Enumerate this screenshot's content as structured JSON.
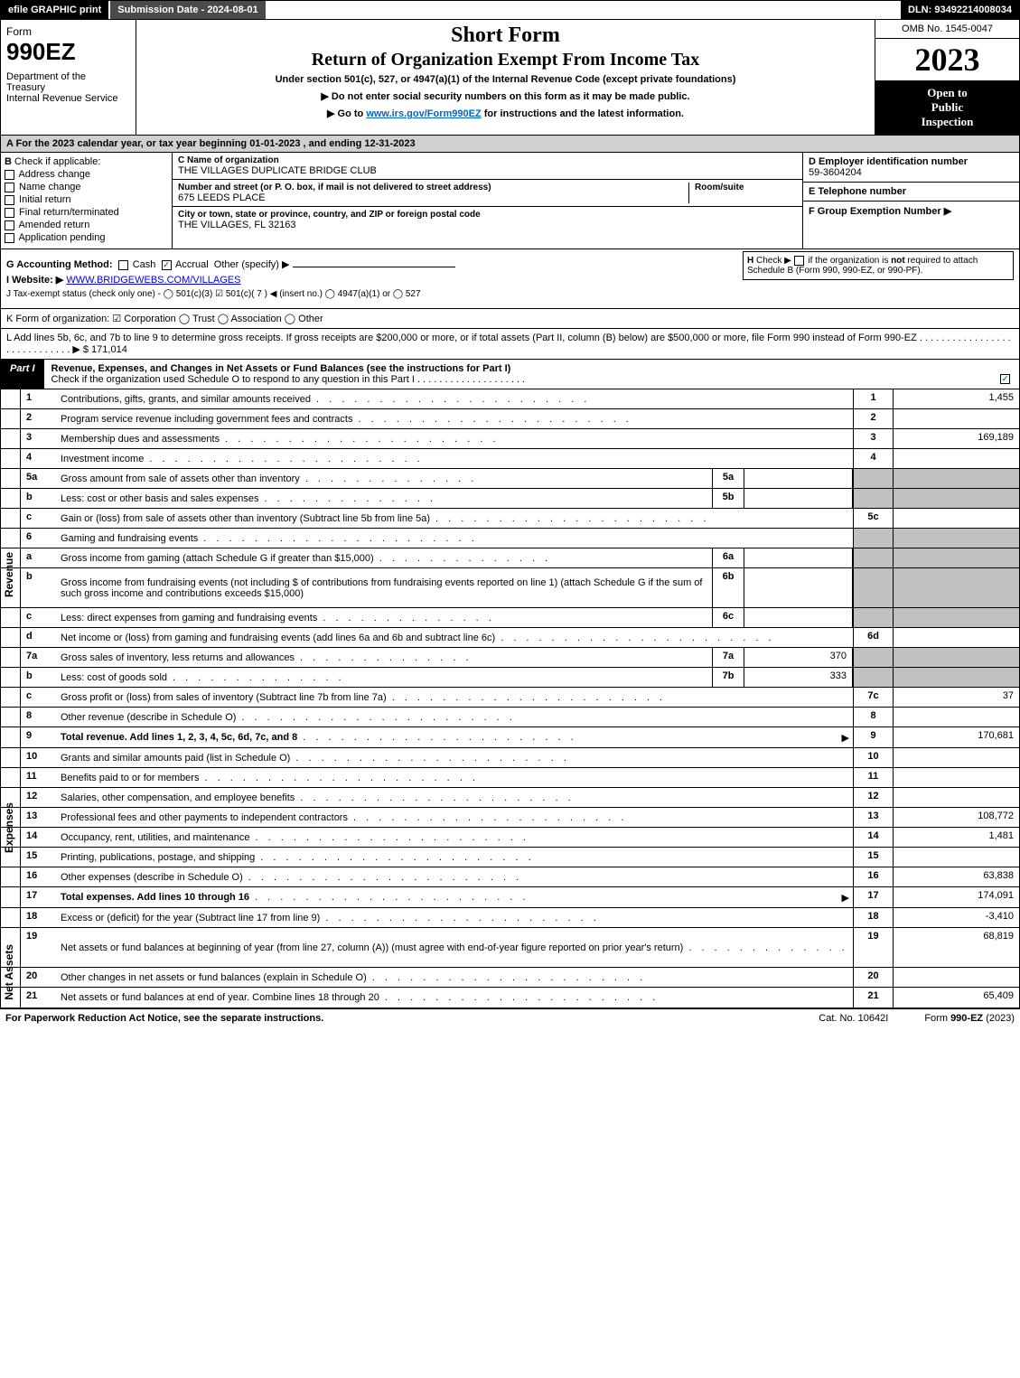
{
  "topbar": {
    "efile": "efile GRAPHIC print",
    "submission": "Submission Date - 2024-08-01",
    "dln": "DLN: 93492214008034"
  },
  "header": {
    "form_word": "Form",
    "form_num": "990EZ",
    "dept": "Department of the Treasury\nInternal Revenue Service",
    "short": "Short Form",
    "return": "Return of Organization Exempt From Income Tax",
    "sub": "Under section 501(c), 527, or 4947(a)(1) of the Internal Revenue Code (except private foundations)",
    "sub2a": "▶ Do not enter social security numbers on this form as it may be made public.",
    "sub2b": "▶ Go to ",
    "sub2b_link": "www.irs.gov/Form990EZ",
    "sub2b_after": " for instructions and the latest information.",
    "omb": "OMB No. 1545-0047",
    "year": "2023",
    "open": "Open to Public Inspection"
  },
  "line_a": "A  For the 2023 calendar year, or tax year beginning 01-01-2023  , and ending 12-31-2023",
  "col_b": {
    "hdr": "B",
    "hdr2": "Check if applicable:",
    "items": [
      "Address change",
      "Name change",
      "Initial return",
      "Final return/terminated",
      "Amended return",
      "Application pending"
    ]
  },
  "col_c": {
    "name_lbl": "C Name of organization",
    "name_val": "THE VILLAGES DUPLICATE BRIDGE CLUB",
    "street_lbl": "Number and street (or P. O. box, if mail is not delivered to street address)",
    "room_lbl": "Room/suite",
    "street_val": "675 LEEDS PLACE",
    "city_lbl": "City or town, state or province, country, and ZIP or foreign postal code",
    "city_val": "THE VILLAGES, FL  32163"
  },
  "col_d": {
    "ein_lbl": "D Employer identification number",
    "ein_val": "59-3604204",
    "tel_lbl": "E Telephone number",
    "tel_val": "",
    "grp_lbl": "F Group Exemption Number  ▶",
    "grp_val": ""
  },
  "section_gh": {
    "g": "G Accounting Method:",
    "g_cash": "Cash",
    "g_accr": "Accrual",
    "g_other": "Other (specify) ▶",
    "h": "H  Check ▶  ◯  if the organization is not required to attach Schedule B (Form 990, 990-EZ, or 990-PF).",
    "i": "I Website: ▶",
    "i_val": "WWW.BRIDGEWEBS.COM/VILLAGES",
    "j": "J Tax-exempt status (check only one) -  ◯ 501(c)(3)  ☑ 501(c)( 7 ) ◀ (insert no.)  ◯ 4947(a)(1) or  ◯ 527"
  },
  "section_k": "K Form of organization:  ☑ Corporation  ◯ Trust  ◯ Association  ◯ Other",
  "section_l": {
    "text": "L Add lines 5b, 6c, and 7b to line 9 to determine gross receipts. If gross receipts are $200,000 or more, or if total assets (Part II, column (B) below) are $500,000 or more, file Form 990 instead of Form 990-EZ . . . . . . . . . . . . . . . . . . . . . . . . . . . . .  ▶ $ ",
    "val": "171,014"
  },
  "part1": {
    "tab": "Part I",
    "title": "Revenue, Expenses, and Changes in Net Assets or Fund Balances (see the instructions for Part I)",
    "check": "Check if the organization used Schedule O to respond to any question in this Part I . . . . . . . . . . . . . . . . . . . .",
    "checked": true
  },
  "revenue_rows": [
    {
      "n": "1",
      "desc": "Contributions, gifts, grants, and similar amounts received",
      "ref": "1",
      "val": "1,455"
    },
    {
      "n": "2",
      "desc": "Program service revenue including government fees and contracts",
      "ref": "2",
      "val": ""
    },
    {
      "n": "3",
      "desc": "Membership dues and assessments",
      "ref": "3",
      "val": "169,189"
    },
    {
      "n": "4",
      "desc": "Investment income",
      "ref": "4",
      "val": ""
    },
    {
      "n": "5a",
      "desc": "Gross amount from sale of assets other than inventory",
      "mini_n": "5a",
      "mini_v": "",
      "ref": "",
      "val": "",
      "shade": true
    },
    {
      "n": "b",
      "desc": "Less: cost or other basis and sales expenses",
      "mini_n": "5b",
      "mini_v": "",
      "ref": "",
      "val": "",
      "shade": true
    },
    {
      "n": "c",
      "desc": "Gain or (loss) from sale of assets other than inventory (Subtract line 5b from line 5a)",
      "ref": "5c",
      "val": ""
    },
    {
      "n": "6",
      "desc": "Gaming and fundraising events",
      "ref": "",
      "val": "",
      "shade": true
    },
    {
      "n": "a",
      "desc": "Gross income from gaming (attach Schedule G if greater than $15,000)",
      "mini_n": "6a",
      "mini_v": "",
      "ref": "",
      "val": "",
      "shade": true
    },
    {
      "n": "b",
      "desc": "Gross income from fundraising events (not including $                    of contributions from fundraising events reported on line 1) (attach Schedule G if the sum of such gross income and contributions exceeds $15,000)",
      "mini_n": "6b",
      "mini_v": "",
      "ref": "",
      "val": "",
      "shade": true,
      "tall": true
    },
    {
      "n": "c",
      "desc": "Less: direct expenses from gaming and fundraising events",
      "mini_n": "6c",
      "mini_v": "",
      "ref": "",
      "val": "",
      "shade": true
    },
    {
      "n": "d",
      "desc": "Net income or (loss) from gaming and fundraising events (add lines 6a and 6b and subtract line 6c)",
      "ref": "6d",
      "val": ""
    },
    {
      "n": "7a",
      "desc": "Gross sales of inventory, less returns and allowances",
      "mini_n": "7a",
      "mini_v": "370",
      "ref": "",
      "val": "",
      "shade": true
    },
    {
      "n": "b",
      "desc": "Less: cost of goods sold",
      "mini_n": "7b",
      "mini_v": "333",
      "ref": "",
      "val": "",
      "shade": true
    },
    {
      "n": "c",
      "desc": "Gross profit or (loss) from sales of inventory (Subtract line 7b from line 7a)",
      "ref": "7c",
      "val": "37"
    },
    {
      "n": "8",
      "desc": "Other revenue (describe in Schedule O)",
      "ref": "8",
      "val": ""
    },
    {
      "n": "9",
      "desc": "Total revenue. Add lines 1, 2, 3, 4, 5c, 6d, 7c, and 8",
      "ref": "9",
      "val": "170,681",
      "bold": true,
      "arrow": true
    }
  ],
  "expense_rows": [
    {
      "n": "10",
      "desc": "Grants and similar amounts paid (list in Schedule O)",
      "ref": "10",
      "val": ""
    },
    {
      "n": "11",
      "desc": "Benefits paid to or for members",
      "ref": "11",
      "val": ""
    },
    {
      "n": "12",
      "desc": "Salaries, other compensation, and employee benefits",
      "ref": "12",
      "val": ""
    },
    {
      "n": "13",
      "desc": "Professional fees and other payments to independent contractors",
      "ref": "13",
      "val": "108,772"
    },
    {
      "n": "14",
      "desc": "Occupancy, rent, utilities, and maintenance",
      "ref": "14",
      "val": "1,481"
    },
    {
      "n": "15",
      "desc": "Printing, publications, postage, and shipping",
      "ref": "15",
      "val": ""
    },
    {
      "n": "16",
      "desc": "Other expenses (describe in Schedule O)",
      "ref": "16",
      "val": "63,838"
    },
    {
      "n": "17",
      "desc": "Total expenses. Add lines 10 through 16",
      "ref": "17",
      "val": "174,091",
      "bold": true,
      "arrow": true
    }
  ],
  "netassets_rows": [
    {
      "n": "18",
      "desc": "Excess or (deficit) for the year (Subtract line 17 from line 9)",
      "ref": "18",
      "val": "-3,410"
    },
    {
      "n": "19",
      "desc": "Net assets or fund balances at beginning of year (from line 27, column (A)) (must agree with end-of-year figure reported on prior year's return)",
      "ref": "19",
      "val": "68,819",
      "tall": true
    },
    {
      "n": "20",
      "desc": "Other changes in net assets or fund balances (explain in Schedule O)",
      "ref": "20",
      "val": ""
    },
    {
      "n": "21",
      "desc": "Net assets or fund balances at end of year. Combine lines 18 through 20",
      "ref": "21",
      "val": "65,409"
    }
  ],
  "footer": {
    "l": "For Paperwork Reduction Act Notice, see the separate instructions.",
    "c": "Cat. No. 10642I",
    "r": "Form 990-EZ (2023)"
  },
  "colors": {
    "topbar_bg": "#000000",
    "shade_bg": "#c0c0c0",
    "line_a_bg": "#d0d0d0",
    "link": "#0066cc",
    "check": "#2a8a2a"
  }
}
